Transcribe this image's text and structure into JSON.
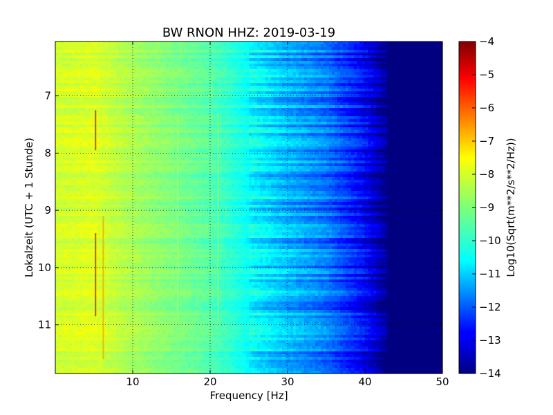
{
  "chart_data": {
    "type": "heatmap",
    "title": "BW RNON HHZ: 2019-03-19",
    "xlabel": "Frequency [Hz]",
    "ylabel": "Lokalzeit (UTC + 1 Stunde)",
    "xlim": [
      0,
      50
    ],
    "ylim": [
      11.85,
      6.05
    ],
    "x_ticks": [
      10,
      20,
      30,
      40,
      50
    ],
    "y_ticks": [
      7,
      8,
      9,
      10,
      11
    ],
    "grid": true,
    "colormap": "jet",
    "colorbar": {
      "label": "Log10(Sqrt(m**2/s**2/Hz))",
      "range": [
        -14,
        -4
      ],
      "ticks": [
        -4,
        -5,
        -6,
        -7,
        -8,
        -9,
        -10,
        -11,
        -12,
        -13,
        -14
      ]
    },
    "spectrum_profile": {
      "frequency_hz": [
        0,
        5,
        10,
        15,
        20,
        25,
        30,
        35,
        40,
        42,
        43,
        50
      ],
      "log10_amplitude": [
        -8.2,
        -8.1,
        -8.6,
        -9.0,
        -9.4,
        -10.2,
        -11.0,
        -11.6,
        -12.8,
        -13.6,
        -14.0,
        -14.0
      ]
    },
    "narrowband_lines": [
      {
        "frequency_hz": 5.2,
        "time_start": 7.25,
        "time_end": 7.95,
        "log10_amplitude": -5.8
      },
      {
        "frequency_hz": 5.2,
        "time_start": 9.4,
        "time_end": 10.85,
        "log10_amplitude": -5.8
      },
      {
        "frequency_hz": 6.2,
        "time_start": 9.1,
        "time_end": 11.6,
        "log10_amplitude": -7.0
      },
      {
        "frequency_hz": 15.8,
        "time_start": 7.3,
        "time_end": 10.9,
        "log10_amplitude": -8.6
      },
      {
        "frequency_hz": 21.0,
        "time_start": 7.3,
        "time_end": 11.0,
        "log10_amplitude": -8.9
      }
    ]
  }
}
